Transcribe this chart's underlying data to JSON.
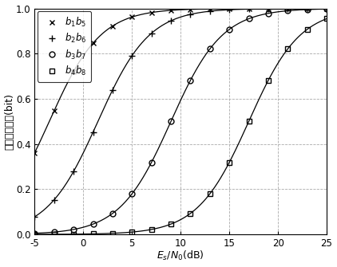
{
  "xlabel_math": "$E_s/N_0(\\mathrm{dB})$",
  "ylabel_text": "平均互信息量(bit)",
  "xlim": [
    -5,
    25
  ],
  "ylim": [
    0,
    1
  ],
  "xticks": [
    -5,
    0,
    5,
    10,
    15,
    20,
    25
  ],
  "yticks": [
    0.0,
    0.2,
    0.4,
    0.6,
    0.8,
    1.0
  ],
  "legend_labels": [
    "$b_1b_5$",
    "$b_2b_6$",
    "$b_3b_7$",
    "$b_4b_8$"
  ],
  "markers": [
    "x",
    "+",
    "o",
    "s"
  ],
  "marker_sizes": [
    5,
    6,
    5,
    5
  ],
  "line_color": "#000000",
  "grid_color": "#aaaaaa",
  "background_color": "#ffffff",
  "curve_params": [
    {
      "x0": -3.5,
      "k": 0.38
    },
    {
      "x0": 1.5,
      "k": 0.38
    },
    {
      "x0": 9.0,
      "k": 0.38
    },
    {
      "x0": 17.0,
      "k": 0.38
    }
  ],
  "n_markers": 16
}
